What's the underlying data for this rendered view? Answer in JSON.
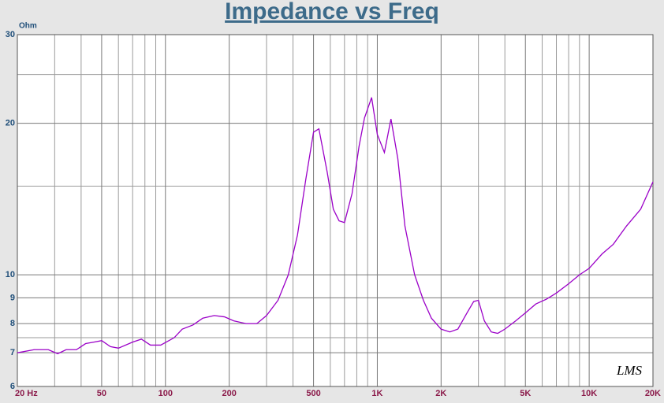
{
  "chart_data": {
    "type": "line",
    "title": "Impedance vs Freq",
    "y_label": "Ohm",
    "logo": "LMS",
    "log_x": true,
    "log_y": true,
    "grid": true,
    "xlim": [
      20,
      20000
    ],
    "ylim": [
      6,
      30
    ],
    "xticks": [
      {
        "value": 20,
        "label": "20 Hz"
      },
      50,
      100,
      200,
      500,
      {
        "value": 1000,
        "label": "1K"
      },
      {
        "value": 2000,
        "label": "2K"
      },
      {
        "value": 5000,
        "label": "5K"
      },
      {
        "value": 10000,
        "label": "10K"
      },
      {
        "value": 20000,
        "label": "20K"
      }
    ],
    "yticks": [
      6,
      7,
      8,
      9,
      10,
      20,
      30
    ],
    "x_minor_grid": [
      30,
      40,
      60,
      70,
      80,
      90,
      300,
      400,
      600,
      700,
      800,
      900,
      3000,
      4000,
      6000,
      7000,
      8000,
      9000
    ],
    "y_minor_grid": [
      7.5,
      15,
      25
    ],
    "series": [
      {
        "name": "Impedance",
        "color": "#9b00c8",
        "x": [
          20,
          24,
          28,
          31,
          34,
          38,
          42,
          46,
          50,
          55,
          60,
          70,
          77,
          85,
          95,
          110,
          120,
          135,
          150,
          170,
          190,
          210,
          240,
          270,
          300,
          340,
          380,
          420,
          460,
          500,
          530,
          580,
          620,
          660,
          700,
          760,
          820,
          870,
          940,
          1000,
          1080,
          1160,
          1250,
          1350,
          1500,
          1650,
          1800,
          2000,
          2200,
          2400,
          2650,
          2850,
          3000,
          3200,
          3450,
          3700,
          4000,
          4500,
          5000,
          5600,
          6300,
          7000,
          8000,
          9000,
          10000,
          11500,
          13000,
          15000,
          17500,
          20000
        ],
        "values": [
          7.0,
          7.1,
          7.1,
          6.97,
          7.1,
          7.1,
          7.3,
          7.35,
          7.4,
          7.2,
          7.15,
          7.35,
          7.45,
          7.25,
          7.25,
          7.5,
          7.8,
          7.95,
          8.2,
          8.3,
          8.25,
          8.1,
          8.0,
          8.0,
          8.3,
          8.9,
          10.0,
          12.0,
          15.5,
          19.2,
          19.5,
          16.0,
          13.5,
          12.8,
          12.7,
          14.5,
          18.0,
          20.5,
          22.5,
          19.0,
          17.5,
          20.4,
          17.0,
          12.5,
          10.0,
          8.9,
          8.2,
          7.8,
          7.7,
          7.8,
          8.4,
          8.85,
          8.9,
          8.1,
          7.7,
          7.65,
          7.8,
          8.1,
          8.4,
          8.75,
          8.95,
          9.2,
          9.6,
          10.0,
          10.3,
          11.0,
          11.5,
          12.5,
          13.5,
          15.3
        ]
      }
    ]
  }
}
